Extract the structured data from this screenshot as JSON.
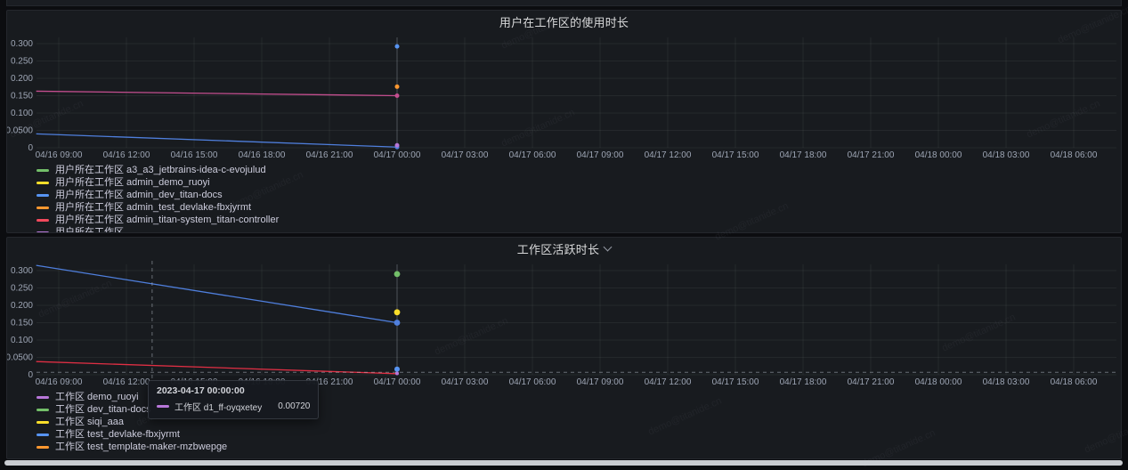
{
  "page": {
    "watermark_text": "demo@titanide.cn"
  },
  "panels": [
    {
      "title": "用户在工作区的使用时长",
      "has_dropdown": false,
      "legend": [
        {
          "label": "用户所在工作区 a3_a3_jetbrains-idea-c-evojulud",
          "color": "#73BF69"
        },
        {
          "label": "用户所在工作区 admin_demo_ruoyi",
          "color": "#FADE2A"
        },
        {
          "label": "用户所在工作区 admin_dev_titan-docs",
          "color": "#5794F2"
        },
        {
          "label": "用户所在工作区 admin_test_devlake-fbxjyrmt",
          "color": "#FF9830"
        },
        {
          "label": "用户所在工作区 admin_titan-system_titan-controller",
          "color": "#F2495C"
        },
        {
          "label": "用户所在工作区 …",
          "color": "#B877D9",
          "clipped": true
        }
      ]
    },
    {
      "title": "工作区活跃时长",
      "has_dropdown": true,
      "legend": [
        {
          "label": "工作区 demo_ruoyi",
          "color": "#B877D9"
        },
        {
          "label": "工作区 dev_titan-docs",
          "color": "#73BF69"
        },
        {
          "label": "工作区 siqi_aaa",
          "color": "#FADE2A"
        },
        {
          "label": "工作区 test_devlake-fbxjyrmt",
          "color": "#5794F2"
        },
        {
          "label": "工作区 test_template-maker-mzbwepge",
          "color": "#FF9830"
        }
      ]
    }
  ],
  "tooltip": {
    "time": "2023-04-17 00:00:00",
    "series": "工作区 d1_ff-oyqxetey",
    "value": "0.00720",
    "color": "#B877D9"
  },
  "chart_data": [
    {
      "type": "line",
      "title": "用户在工作区的使用时长",
      "xlabel": "",
      "ylabel": "",
      "ylim": [
        0,
        0.318
      ],
      "grid": true,
      "legend_position": "bottom-left",
      "x_ticks": [
        "04/16 09:00",
        "04/16 12:00",
        "04/16 15:00",
        "04/16 18:00",
        "04/16 21:00",
        "04/17 00:00",
        "04/17 03:00",
        "04/17 06:00",
        "04/17 09:00",
        "04/17 12:00",
        "04/17 15:00",
        "04/17 18:00",
        "04/17 21:00",
        "04/18 00:00",
        "04/18 03:00",
        "04/18 06:00"
      ],
      "x_tick_interval_hours": 3,
      "y_ticks": [
        {
          "v": 0.3,
          "label": "0.300"
        },
        {
          "v": 0.25,
          "label": "0.250"
        },
        {
          "v": 0.2,
          "label": "0.200"
        },
        {
          "v": 0.15,
          "label": "0.150"
        },
        {
          "v": 0.1,
          "label": "0.100"
        },
        {
          "v": 0.05,
          "label": "0.0500"
        },
        {
          "v": 0,
          "label": "0"
        }
      ],
      "series": [
        {
          "color": "#C44E8F",
          "points": [
            [
              -1,
              0.163
            ],
            [
              15,
              0.15
            ]
          ],
          "end_dot": true,
          "dot_r": 2.5
        },
        {
          "color": "#4F7FDD",
          "points": [
            [
              -1,
              0.04
            ],
            [
              15,
              0.002
            ]
          ],
          "end_dot": true,
          "dot_r": 2.5
        }
      ],
      "points": [
        {
          "x": 15,
          "v": 0.292,
          "color": "#5794F2",
          "r": 2.5
        },
        {
          "x": 15,
          "v": 0.176,
          "color": "#FF9830",
          "r": 2.5
        },
        {
          "x": 15,
          "v": 0.007,
          "color": "#B877D9",
          "r": 2.5
        }
      ],
      "crosshair": {
        "v_solid_x": 15
      }
    },
    {
      "type": "line",
      "title": "工作区活跃时长",
      "xlabel": "",
      "ylabel": "",
      "ylim": [
        0,
        0.318
      ],
      "grid": true,
      "legend_position": "bottom-left",
      "x_ticks": [
        "04/16 09:00",
        "04/16 12:00",
        "04/16 15:00",
        "04/16 18:00",
        "04/16 21:00",
        "04/17 00:00",
        "04/17 03:00",
        "04/17 06:00",
        "04/17 09:00",
        "04/17 12:00",
        "04/17 15:00",
        "04/17 18:00",
        "04/17 21:00",
        "04/18 00:00",
        "04/18 03:00",
        "04/18 06:00"
      ],
      "x_tick_interval_hours": 3,
      "y_ticks": [
        {
          "v": 0.3,
          "label": "0.300"
        },
        {
          "v": 0.25,
          "label": "0.250"
        },
        {
          "v": 0.2,
          "label": "0.200"
        },
        {
          "v": 0.15,
          "label": "0.150"
        },
        {
          "v": 0.1,
          "label": "0.100"
        },
        {
          "v": 0.05,
          "label": "0.0500"
        },
        {
          "v": 0,
          "label": "0"
        }
      ],
      "series": [
        {
          "color": "#4F7FDD",
          "points": [
            [
              -1,
              0.315
            ],
            [
              15,
              0.15
            ]
          ],
          "end_dot": true,
          "dot_r": 3.4
        },
        {
          "color": "#E02F44",
          "points": [
            [
              -1,
              0.038
            ],
            [
              15,
              0.003
            ]
          ],
          "end_dot": false
        }
      ],
      "points": [
        {
          "x": 15,
          "v": 0.29,
          "color": "#73BF69",
          "r": 3.4
        },
        {
          "x": 15,
          "v": 0.18,
          "color": "#FADE2A",
          "r": 3.4
        },
        {
          "x": 15,
          "v": 0.016,
          "color": "#5794F2",
          "r": 3
        },
        {
          "x": 15,
          "v": 0.004,
          "color": "#B877D9",
          "r": 2
        }
      ],
      "crosshair": {
        "v_solid_x": 15,
        "v_dashed_x": 4.14,
        "h_dashed_v": 0.0072
      }
    }
  ]
}
